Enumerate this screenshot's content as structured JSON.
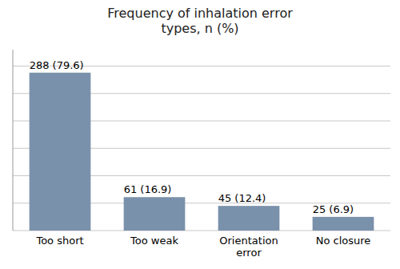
{
  "chart_data": {
    "type": "bar",
    "title": "Frequency of inhalation error\ntypes, n (%)",
    "categories": [
      "Too short",
      "Too weak",
      "Orientation\nerror",
      "No closure"
    ],
    "values": [
      288,
      61,
      45,
      25
    ],
    "value_labels": [
      "288 (79.6)",
      "61 (16.9)",
      "45 (12.4)",
      "25 (6.9)"
    ],
    "color": "#7a91ab",
    "ylim": [
      0,
      330
    ],
    "yticks": [
      0,
      50,
      100,
      150,
      200,
      250,
      300
    ],
    "grid": true,
    "data_labels": true,
    "tick_labels": "x"
  }
}
